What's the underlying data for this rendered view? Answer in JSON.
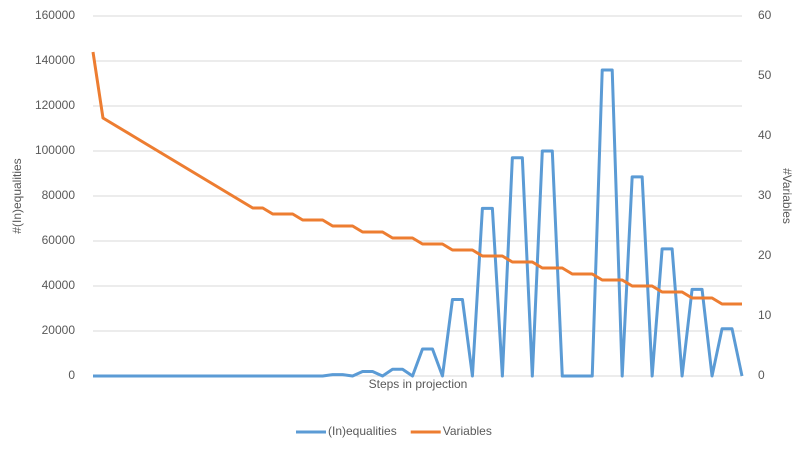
{
  "chart_data": {
    "type": "line",
    "x_label": "Steps in projection",
    "y_label": "#(In)equalities",
    "y2_label": "#Variables",
    "categories": [
      null,
      null,
      null,
      null,
      null,
      null,
      null,
      null,
      null,
      null,
      null,
      null,
      null,
      null,
      null,
      null,
      null,
      null,
      null,
      null,
      null,
      null,
      null,
      null,
      null,
      null,
      null,
      null,
      null,
      null,
      null,
      null,
      null,
      null,
      null,
      null,
      null,
      null,
      null,
      null,
      null,
      null,
      null,
      null,
      null,
      null,
      null,
      null,
      null,
      null,
      null,
      null,
      null,
      null,
      null,
      null,
      null,
      null,
      null,
      null,
      null,
      null,
      null,
      null,
      null,
      null
    ],
    "series": [
      {
        "name": "(In)equalities",
        "color": "#5b9bd5",
        "axis": "y",
        "values": [
          0,
          0,
          0,
          0,
          0,
          0,
          0,
          0,
          0,
          0,
          0,
          0,
          0,
          0,
          0,
          0,
          0,
          0,
          0,
          0,
          0,
          0,
          0,
          0,
          600,
          600,
          0,
          2000,
          2000,
          0,
          3000,
          3000,
          0,
          12000,
          12000,
          0,
          34000,
          34000,
          0,
          74500,
          74500,
          0,
          97000,
          97000,
          0,
          100000,
          100000,
          0,
          0,
          0,
          0,
          136000,
          136000,
          0,
          88500,
          88500,
          0,
          56500,
          56500,
          0,
          38500,
          38500,
          0,
          21000,
          21000,
          0
        ]
      },
      {
        "name": "Variables",
        "color": "#ed7d31",
        "axis": "y2",
        "values": [
          54,
          43,
          42,
          41,
          40,
          39,
          38,
          37,
          36,
          35,
          34,
          33,
          32,
          31,
          30,
          29,
          28,
          28,
          27,
          27,
          27,
          26,
          26,
          26,
          25,
          25,
          25,
          24,
          24,
          24,
          23,
          23,
          23,
          22,
          22,
          22,
          21,
          21,
          21,
          20,
          20,
          20,
          19,
          19,
          19,
          18,
          18,
          18,
          17,
          17,
          17,
          16,
          16,
          16,
          15,
          15,
          15,
          14,
          14,
          14,
          13,
          13,
          13,
          12,
          12,
          12
        ]
      }
    ],
    "ylim": [
      0,
      160000
    ],
    "yticks": [
      0,
      20000,
      40000,
      60000,
      80000,
      100000,
      120000,
      140000,
      160000
    ],
    "y2lim": [
      0,
      60
    ],
    "y2ticks": [
      0,
      10,
      20,
      30,
      40,
      50,
      60
    ],
    "grid": true,
    "legend": "bottom"
  }
}
